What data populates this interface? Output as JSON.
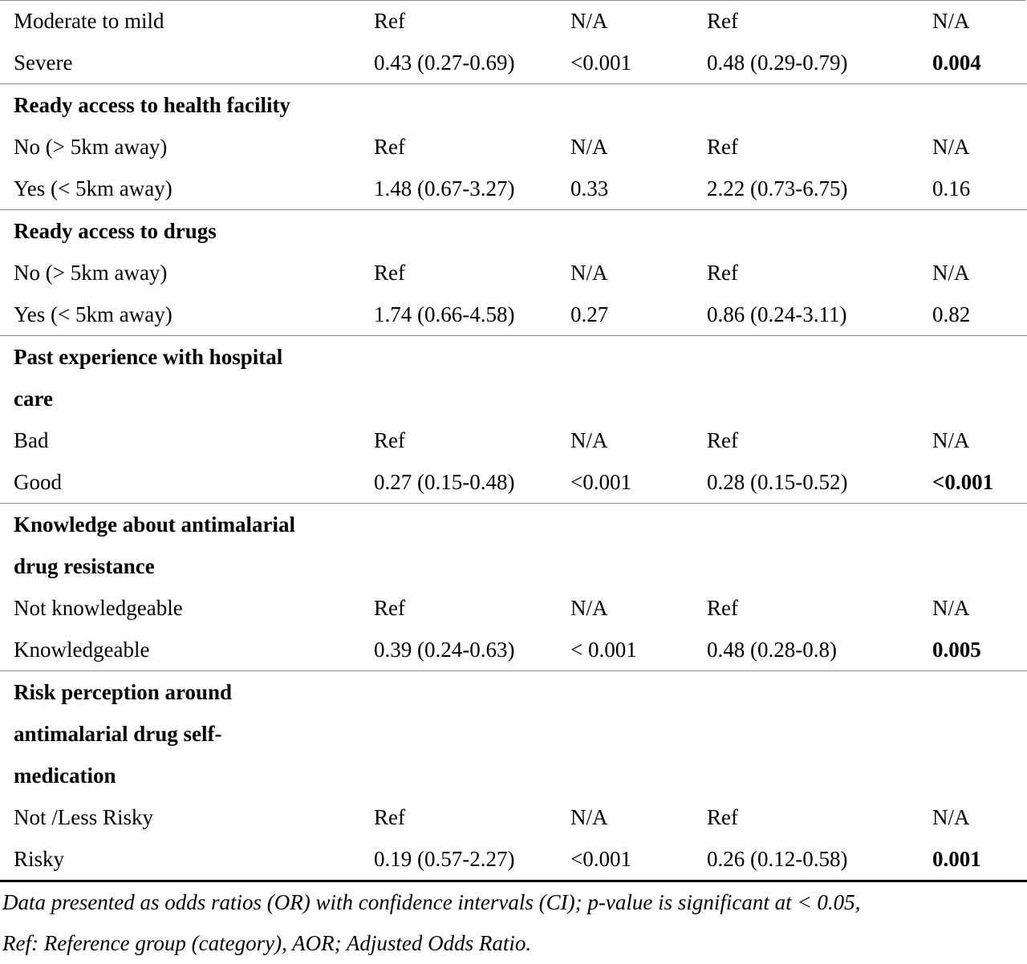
{
  "sections": [
    {
      "heading": [],
      "rows": [
        {
          "label": "Moderate to mild",
          "or": "Ref",
          "p": "N/A",
          "aor": "Ref",
          "ap": "N/A",
          "ap_bold": false
        },
        {
          "label": "Severe",
          "or": "0.43 (0.27-0.69)",
          "p": "<0.001",
          "aor": "0.48 (0.29-0.79)",
          "ap": "0.004",
          "ap_bold": true
        }
      ]
    },
    {
      "heading": [
        "Ready access to health facility"
      ],
      "rows": [
        {
          "label": "No (> 5km away)",
          "or": "Ref",
          "p": "N/A",
          "aor": "Ref",
          "ap": "N/A",
          "ap_bold": false
        },
        {
          "label": "Yes (< 5km away)",
          "or": "1.48 (0.67-3.27)",
          "p": "0.33",
          "aor": "2.22 (0.73-6.75)",
          "ap": "0.16",
          "ap_bold": false
        }
      ]
    },
    {
      "heading": [
        "Ready access to drugs"
      ],
      "rows": [
        {
          "label": "No (> 5km away)",
          "or": "Ref",
          "p": "N/A",
          "aor": "Ref",
          "ap": "N/A",
          "ap_bold": false
        },
        {
          "label": "Yes (< 5km away)",
          "or": "1.74 (0.66-4.58)",
          "p": "0.27",
          "aor": "0.86 (0.24-3.11)",
          "ap": "0.82",
          "ap_bold": false
        }
      ]
    },
    {
      "heading": [
        "Past experience with hospital",
        "care"
      ],
      "rows": [
        {
          "label": "Bad",
          "or": "Ref",
          "p": "N/A",
          "aor": "Ref",
          "ap": "N/A",
          "ap_bold": false
        },
        {
          "label": "Good",
          "or": "0.27 (0.15-0.48)",
          "p": "<0.001",
          "aor": "0.28 (0.15-0.52)",
          "ap": "<0.001",
          "ap_bold": true
        }
      ]
    },
    {
      "heading": [
        "Knowledge about antimalarial",
        "drug resistance"
      ],
      "rows": [
        {
          "label": "Not knowledgeable",
          "or": "Ref",
          "p": "N/A",
          "aor": "Ref",
          "ap": "N/A",
          "ap_bold": false
        },
        {
          "label": "Knowledgeable",
          "or": "0.39 (0.24-0.63)",
          "p": "< 0.001",
          "aor": "0.48 (0.28-0.8)",
          "ap": "0.005",
          "ap_bold": true
        }
      ]
    },
    {
      "heading": [
        "Risk perception around",
        "antimalarial drug self-",
        "medication"
      ],
      "rows": [
        {
          "label": "Not /Less Risky",
          "or": "Ref",
          "p": "N/A",
          "aor": "Ref",
          "ap": "N/A",
          "ap_bold": false
        },
        {
          "label": "Risky",
          "or": "0.19 (0.57-2.27)",
          "p": "<0.001",
          "aor": "0.26 (0.12-0.58)",
          "ap": "0.001",
          "ap_bold": true
        }
      ]
    }
  ],
  "footnote": [
    "Data presented as odds ratios (OR) with confidence intervals (CI); p-value is significant at < 0.05,",
    "Ref: Reference group (category), AOR; Adjusted Odds Ratio."
  ]
}
